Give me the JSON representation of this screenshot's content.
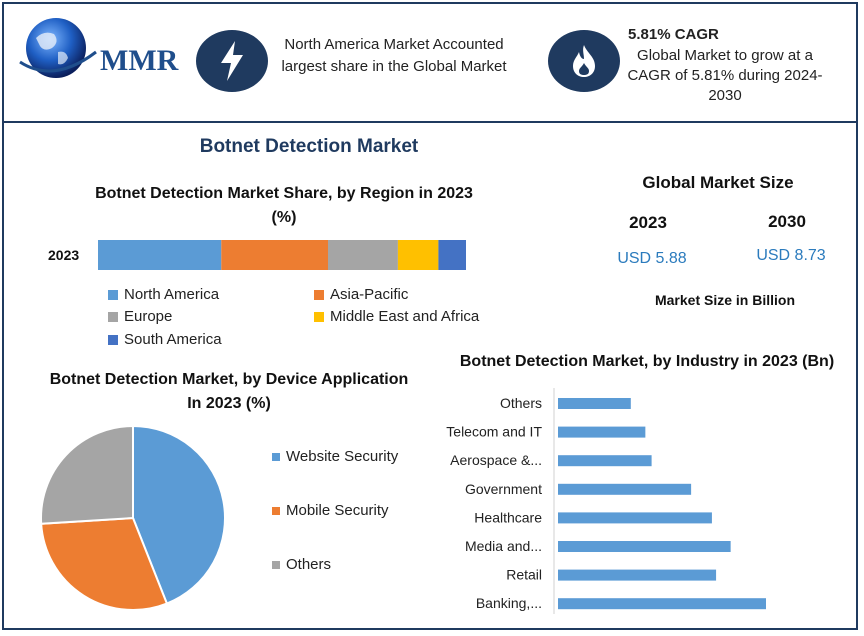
{
  "header": {
    "logo_text": "MMR",
    "left_callout": "North America Market Accounted largest share in the Global Market",
    "right_callout_title": "5.81% CAGR",
    "right_callout_body": "Global Market to grow at a CAGR of 5.81% during 2024-2030",
    "icons": [
      "lightning-icon",
      "flame-icon",
      "globe-icon"
    ]
  },
  "page_title": "Botnet Detection Market",
  "market_size": {
    "title": "Global Market Size",
    "years": [
      "2023",
      "2030"
    ],
    "values": [
      "USD 5.88",
      "USD 8.73"
    ],
    "footnote": "Market Size in Billion"
  },
  "colors": {
    "navy": "#1f3a5f",
    "north_america": "#5b9bd5",
    "asia_pacific": "#ed7d31",
    "europe": "#a5a5a5",
    "mea": "#ffc000",
    "south_america": "#4472c4",
    "value_text": "#2b7bbd"
  },
  "chart_data": [
    {
      "type": "bar",
      "orientation": "horizontal-stacked",
      "title": "Botnet Detection Market Share, by Region in 2023 (%)",
      "categories": [
        "2023"
      ],
      "series": [
        {
          "name": "North America",
          "values": [
            33.5
          ]
        },
        {
          "name": "Asia-Pacific",
          "values": [
            29
          ]
        },
        {
          "name": "Europe",
          "values": [
            19
          ]
        },
        {
          "name": "Middle East and Africa",
          "values": [
            11
          ]
        },
        {
          "name": "South America",
          "values": [
            7.5
          ]
        }
      ],
      "legend": "bottom"
    },
    {
      "type": "pie",
      "title": "Botnet Detection Market, by Device Application In 2023 (%)",
      "labels": [
        "Website Security",
        "Mobile Security",
        "Others"
      ],
      "values": [
        44,
        30,
        26
      ],
      "legend": "right"
    },
    {
      "type": "bar",
      "orientation": "horizontal",
      "title": "Botnet Detection Market, by Industry in 2023 (Bn)",
      "categories": [
        "Others",
        "Telecom and IT",
        "Aerospace &...",
        "Government",
        "Healthcare",
        "Media and...",
        "Retail",
        "Banking,..."
      ],
      "values": [
        0.35,
        0.42,
        0.45,
        0.64,
        0.74,
        0.83,
        0.76,
        1.0
      ],
      "grid": false
    }
  ]
}
